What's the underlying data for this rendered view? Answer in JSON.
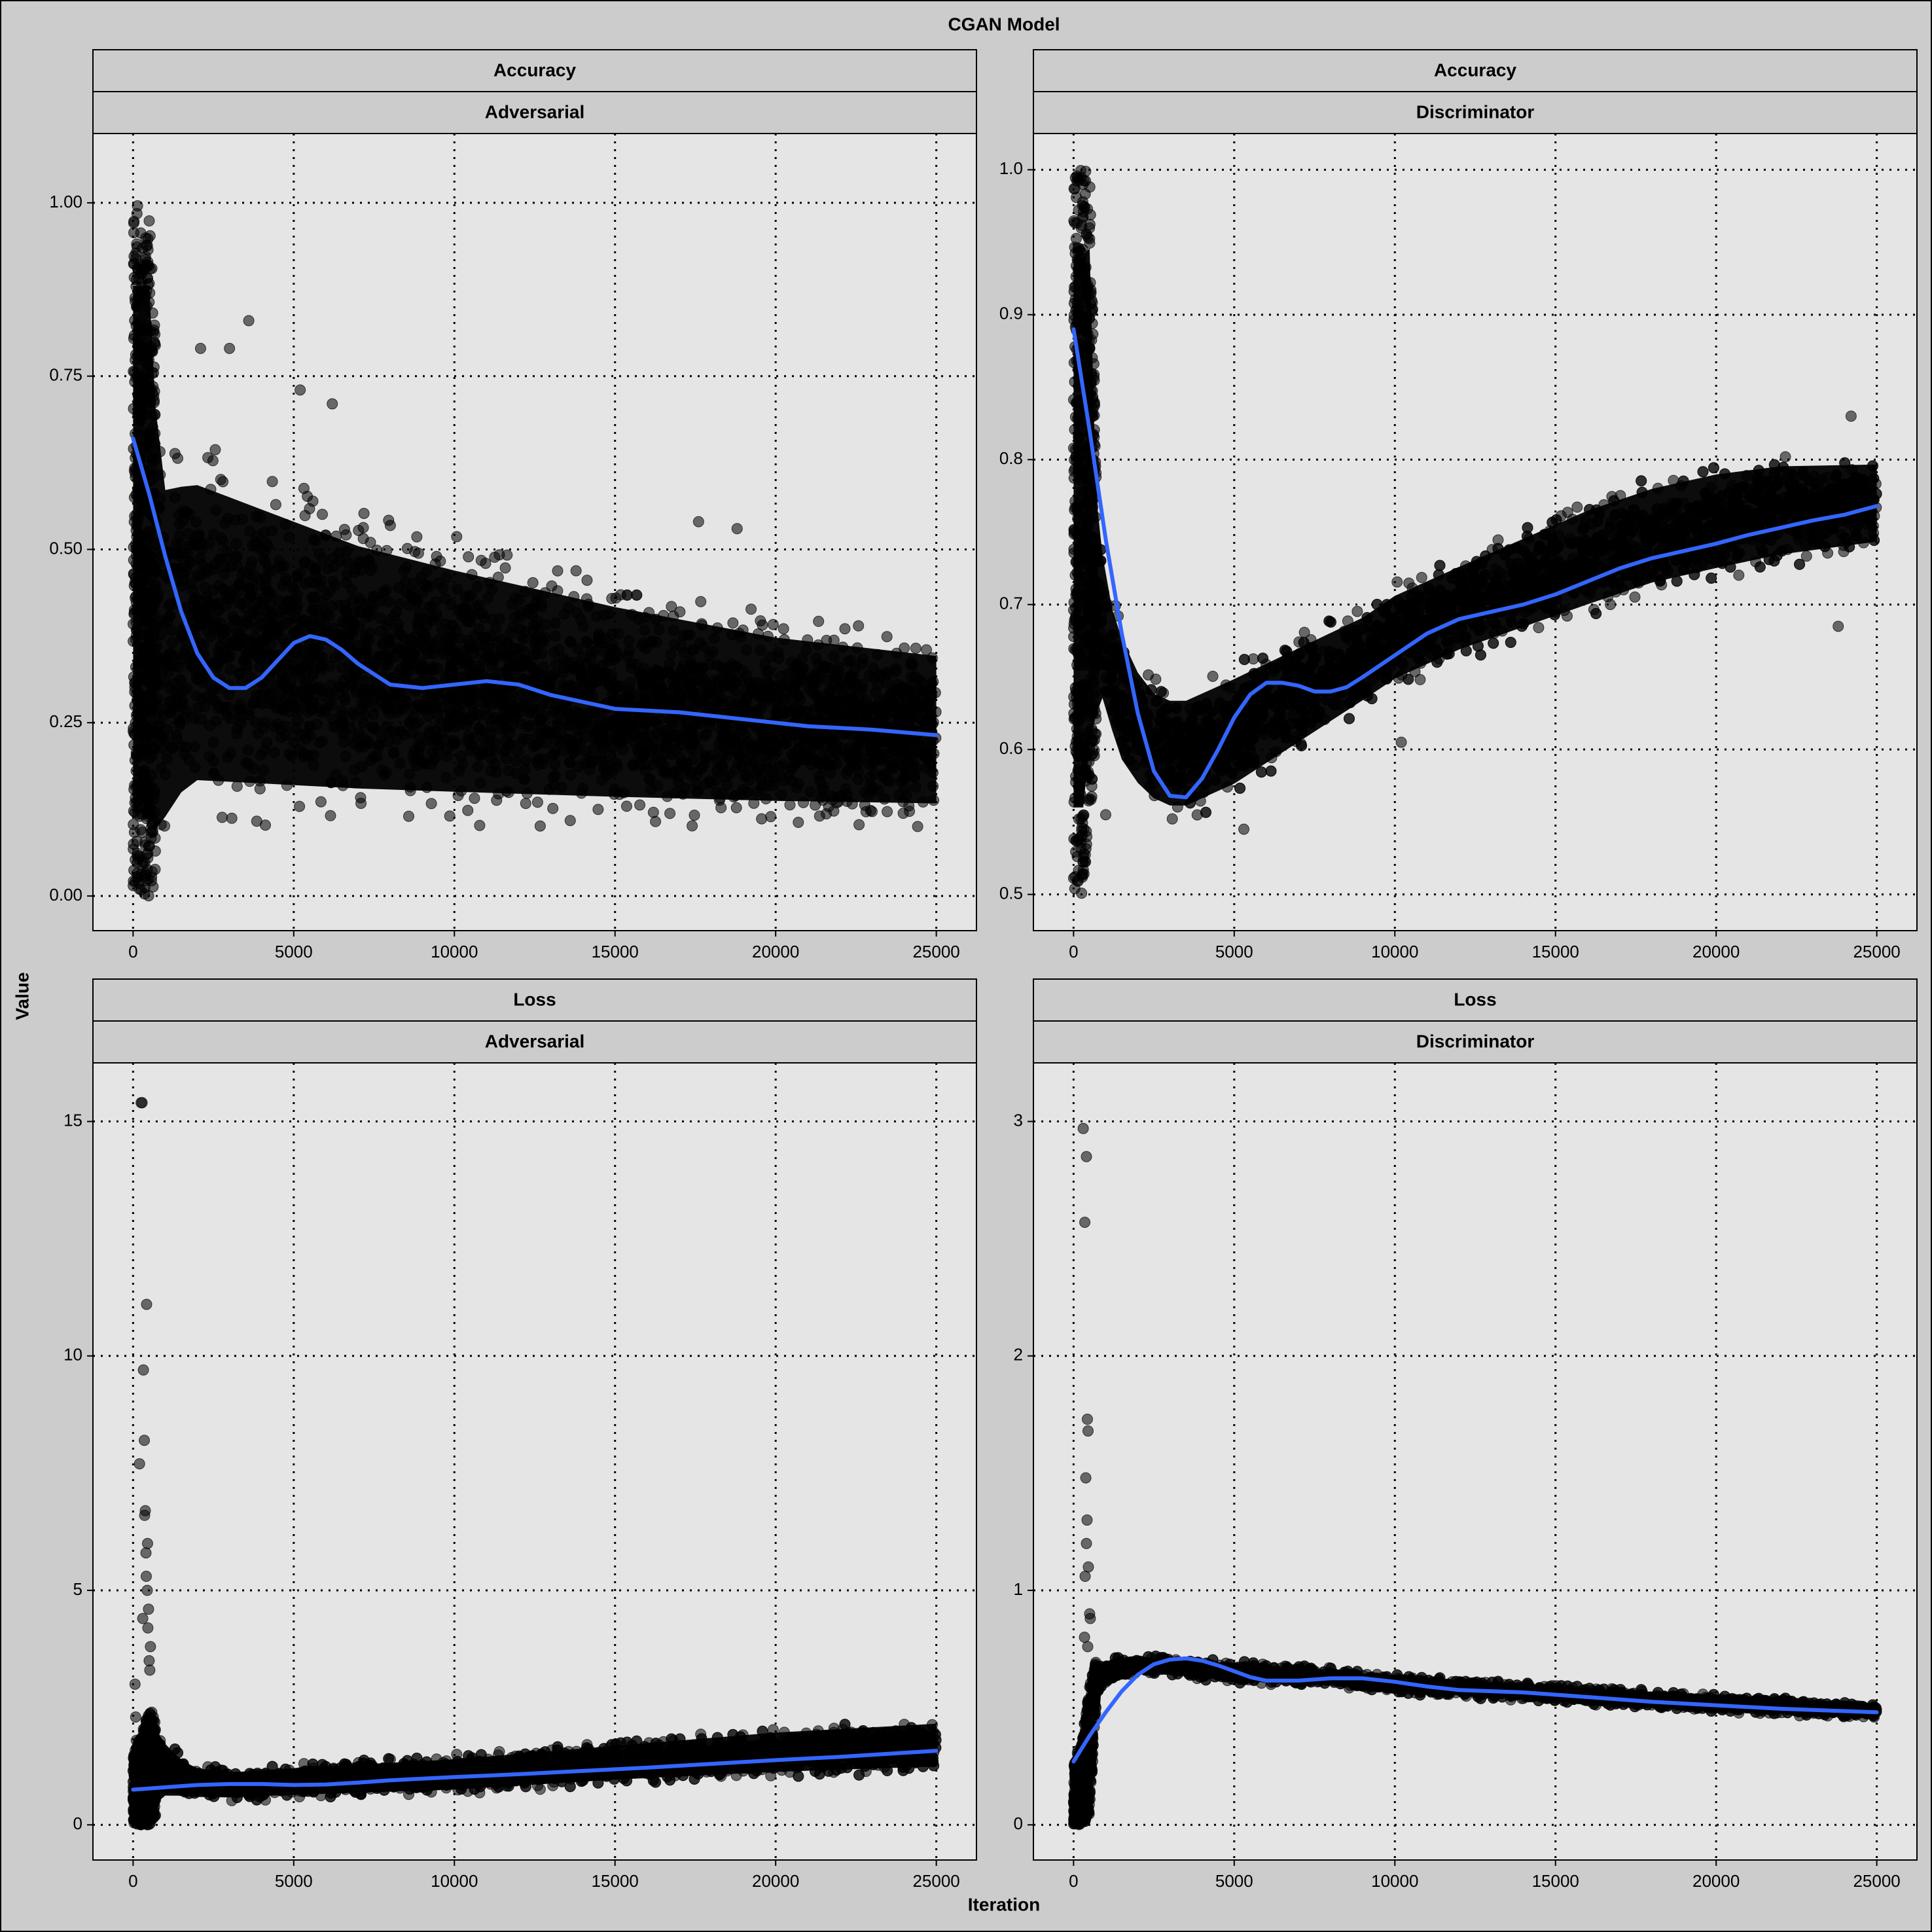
{
  "title": "CGAN Model",
  "xlabel": "Iteration",
  "ylabel": "Value",
  "colors": {
    "background": "#cccccc",
    "panel": "#e5e5e5",
    "strip": "#cccccc",
    "points": "#000000",
    "smooth": "#3366ff"
  },
  "chart_data": [
    {
      "type": "scatter",
      "facet": [
        "Accuracy",
        "Adversarial"
      ],
      "xlim": [
        -1250,
        26250
      ],
      "ylim": [
        -0.05,
        1.1
      ],
      "xticks": [
        0,
        5000,
        10000,
        15000,
        20000,
        25000
      ],
      "xtick_labels": [
        "0",
        "5000",
        "10000",
        "15000",
        "20000",
        "25000"
      ],
      "yticks": [
        0,
        0.25,
        0.5,
        0.75,
        1.0
      ],
      "ytick_labels": [
        "0.00",
        "0.25",
        "0.50",
        "0.75",
        "1.00"
      ],
      "grid": true,
      "band": {
        "x": [
          0,
          300,
          500,
          700,
          1000,
          1500,
          2000,
          3000,
          4000,
          5000,
          7000,
          10000,
          15000,
          20000,
          25000
        ],
        "lower": [
          0.0,
          0.0,
          0.0,
          0.0,
          0.04,
          0.08,
          0.1,
          0.1,
          0.1,
          0.1,
          0.1,
          0.1,
          0.1,
          0.1,
          0.1
        ],
        "upper": [
          1.0,
          1.0,
          1.0,
          0.8,
          0.66,
          0.66,
          0.66,
          0.64,
          0.62,
          0.6,
          0.56,
          0.52,
          0.46,
          0.41,
          0.38
        ]
      },
      "smooth": {
        "x": [
          0,
          500,
          1000,
          1500,
          2000,
          2500,
          3000,
          3500,
          4000,
          4500,
          5000,
          5500,
          6000,
          6500,
          7000,
          8000,
          9000,
          10000,
          11000,
          12000,
          13000,
          14000,
          15000,
          17000,
          19000,
          21000,
          23000,
          25000
        ],
        "y": [
          0.66,
          0.58,
          0.49,
          0.41,
          0.35,
          0.315,
          0.3,
          0.3,
          0.315,
          0.34,
          0.365,
          0.375,
          0.37,
          0.355,
          0.335,
          0.305,
          0.3,
          0.305,
          0.31,
          0.305,
          0.29,
          0.28,
          0.27,
          0.265,
          0.255,
          0.245,
          0.24,
          0.232
        ]
      },
      "outliers": {
        "x": [
          3000,
          3600,
          5200,
          6200,
          2100,
          17600,
          18800
        ],
        "y": [
          0.79,
          0.83,
          0.73,
          0.71,
          0.79,
          0.54,
          0.53
        ]
      }
    },
    {
      "type": "scatter",
      "facet": [
        "Accuracy",
        "Discriminator"
      ],
      "xlim": [
        -1250,
        26250
      ],
      "ylim": [
        0.475,
        1.025
      ],
      "xticks": [
        0,
        5000,
        10000,
        15000,
        20000,
        25000
      ],
      "xtick_labels": [
        "0",
        "5000",
        "10000",
        "15000",
        "20000",
        "25000"
      ],
      "yticks": [
        0.5,
        0.6,
        0.7,
        0.8,
        0.9,
        1.0
      ],
      "ytick_labels": [
        "0.5",
        "0.6",
        "0.7",
        "0.8",
        "0.9",
        "1.0"
      ],
      "grid": true,
      "band": {
        "x": [
          0,
          300,
          500,
          700,
          900,
          1200,
          1500,
          2000,
          2500,
          3000,
          3500,
          4000,
          5000,
          6000,
          7000,
          8000,
          9000,
          10000,
          12000,
          14000,
          16000,
          18000,
          20000,
          22000,
          25000
        ],
        "lower": [
          0.5,
          0.5,
          0.55,
          0.6,
          0.62,
          0.6,
          0.58,
          0.565,
          0.555,
          0.55,
          0.55,
          0.555,
          0.565,
          0.58,
          0.595,
          0.61,
          0.625,
          0.64,
          0.66,
          0.675,
          0.69,
          0.705,
          0.715,
          0.725,
          0.735
        ],
        "upper": [
          1.0,
          1.0,
          1.0,
          0.8,
          0.75,
          0.71,
          0.69,
          0.665,
          0.65,
          0.645,
          0.645,
          0.65,
          0.66,
          0.67,
          0.68,
          0.69,
          0.7,
          0.715,
          0.735,
          0.755,
          0.775,
          0.79,
          0.8,
          0.805,
          0.805
        ]
      },
      "smooth": {
        "x": [
          0,
          500,
          1000,
          1500,
          2000,
          2500,
          3000,
          3500,
          4000,
          4500,
          5000,
          5500,
          6000,
          6500,
          7000,
          7500,
          8000,
          8500,
          9000,
          10000,
          11000,
          12000,
          13000,
          14000,
          15000,
          16000,
          17000,
          18000,
          19000,
          20000,
          21000,
          22000,
          23000,
          24000,
          25000
        ],
        "y": [
          0.89,
          0.82,
          0.745,
          0.68,
          0.625,
          0.585,
          0.568,
          0.567,
          0.58,
          0.6,
          0.622,
          0.638,
          0.646,
          0.646,
          0.644,
          0.64,
          0.64,
          0.643,
          0.65,
          0.665,
          0.68,
          0.69,
          0.695,
          0.7,
          0.707,
          0.716,
          0.725,
          0.732,
          0.737,
          0.742,
          0.748,
          0.753,
          0.758,
          0.762,
          0.768
        ]
      },
      "outliers": {
        "x": [
          24200,
          23800,
          1000,
          5300,
          10200
        ],
        "y": [
          0.83,
          0.685,
          0.555,
          0.545,
          0.605
        ]
      }
    },
    {
      "type": "scatter",
      "facet": [
        "Loss",
        "Adversarial"
      ],
      "xlim": [
        -1250,
        26250
      ],
      "ylim": [
        -0.75,
        16.25
      ],
      "xticks": [
        0,
        5000,
        10000,
        15000,
        20000,
        25000
      ],
      "xtick_labels": [
        "0",
        "5000",
        "10000",
        "15000",
        "20000",
        "25000"
      ],
      "yticks": [
        0,
        5,
        10,
        15
      ],
      "ytick_labels": [
        "0",
        "5",
        "10",
        "15"
      ],
      "grid": true,
      "band": {
        "x": [
          0,
          300,
          500,
          700,
          1000,
          1500,
          2000,
          3000,
          5000,
          10000,
          15000,
          20000,
          25000
        ],
        "lower": [
          0.0,
          0.0,
          0.0,
          0.2,
          0.45,
          0.5,
          0.5,
          0.5,
          0.55,
          0.65,
          0.85,
          1.0,
          1.1
        ],
        "upper": [
          1.5,
          2.0,
          2.5,
          2.3,
          1.9,
          1.5,
          1.3,
          1.2,
          1.3,
          1.5,
          1.8,
          2.1,
          2.3
        ]
      },
      "smooth": {
        "x": [
          0,
          1000,
          2000,
          3000,
          4000,
          5000,
          6000,
          7000,
          8000,
          10000,
          12000,
          14000,
          16000,
          18000,
          20000,
          22000,
          25000
        ],
        "y": [
          0.75,
          0.8,
          0.85,
          0.87,
          0.87,
          0.85,
          0.86,
          0.9,
          0.95,
          1.02,
          1.08,
          1.15,
          1.22,
          1.3,
          1.38,
          1.45,
          1.58
        ]
      },
      "outliers": {
        "x": [
          250,
          280,
          320,
          350,
          380,
          400,
          420,
          450,
          480,
          500,
          520,
          60,
          80,
          100,
          130,
          160,
          200,
          300,
          460,
          410,
          360,
          540,
          440
        ],
        "y": [
          15.4,
          15.4,
          9.7,
          8.2,
          6.7,
          5.8,
          11.1,
          6.0,
          4.6,
          3.5,
          3.3,
          3.0,
          2.3,
          1.8,
          1.5,
          1.2,
          7.7,
          4.4,
          4.2,
          5.3,
          6.6,
          3.8,
          5.0
        ]
      }
    },
    {
      "type": "scatter",
      "facet": [
        "Loss",
        "Discriminator"
      ],
      "xlim": [
        -1250,
        26250
      ],
      "ylim": [
        -0.15,
        3.25
      ],
      "xticks": [
        0,
        5000,
        10000,
        15000,
        20000,
        25000
      ],
      "xtick_labels": [
        "0",
        "5000",
        "10000",
        "15000",
        "20000",
        "25000"
      ],
      "yticks": [
        0,
        1,
        2,
        3
      ],
      "ytick_labels": [
        "0",
        "1",
        "2",
        "3"
      ],
      "grid": true,
      "band": {
        "x": [
          0,
          300,
          500,
          700,
          1000,
          1500,
          2000,
          3000,
          5000,
          8000,
          10000,
          15000,
          20000,
          25000
        ],
        "lower": [
          0.0,
          0.0,
          0.05,
          0.5,
          0.58,
          0.62,
          0.63,
          0.64,
          0.6,
          0.59,
          0.56,
          0.52,
          0.48,
          0.45
        ],
        "upper": [
          0.25,
          0.4,
          0.6,
          0.7,
          0.71,
          0.72,
          0.72,
          0.72,
          0.7,
          0.67,
          0.64,
          0.6,
          0.56,
          0.52
        ]
      },
      "smooth": {
        "x": [
          0,
          500,
          1000,
          1500,
          2000,
          2500,
          3000,
          3500,
          4000,
          4500,
          5000,
          5500,
          6000,
          7000,
          8000,
          9000,
          10000,
          11000,
          12000,
          14000,
          16000,
          18000,
          20000,
          22000,
          25000
        ],
        "y": [
          0.27,
          0.38,
          0.48,
          0.57,
          0.64,
          0.685,
          0.705,
          0.71,
          0.7,
          0.68,
          0.655,
          0.63,
          0.615,
          0.615,
          0.625,
          0.625,
          0.61,
          0.59,
          0.575,
          0.565,
          0.545,
          0.525,
          0.51,
          0.495,
          0.48
        ]
      },
      "outliers": {
        "x": [
          300,
          350,
          400,
          430,
          450,
          380,
          420,
          400,
          460,
          500,
          520,
          360,
          340,
          440
        ],
        "y": [
          2.97,
          2.57,
          2.85,
          1.73,
          1.68,
          1.48,
          1.3,
          1.2,
          1.1,
          0.9,
          0.88,
          1.06,
          0.8,
          0.76
        ]
      }
    }
  ]
}
